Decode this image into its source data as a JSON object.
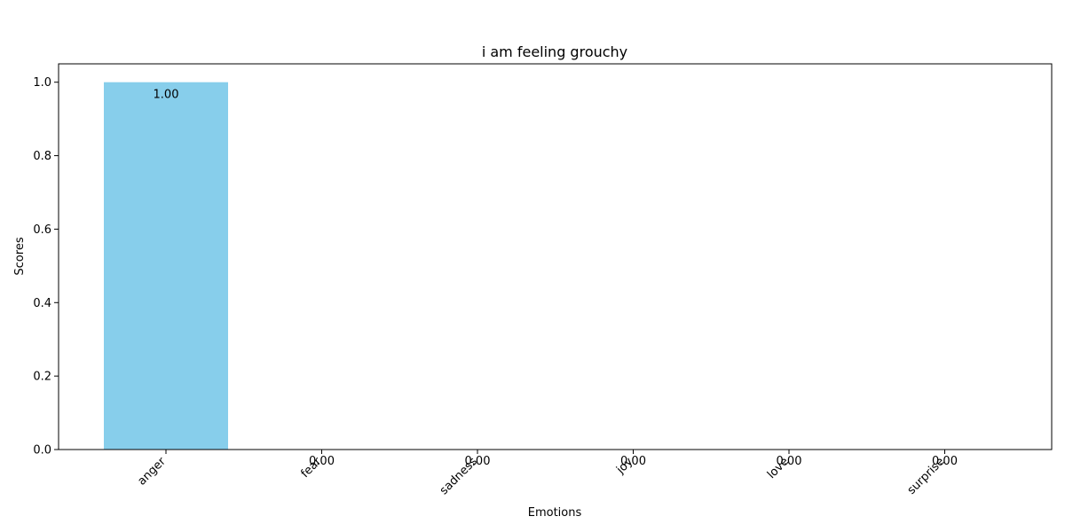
{
  "chart_data": {
    "type": "bar",
    "title": "i am feeling grouchy",
    "xlabel": "Emotions",
    "ylabel": "Scores",
    "categories": [
      "anger",
      "fear",
      "sadness",
      "joy",
      "love",
      "surprise"
    ],
    "values": [
      1.0,
      0.0,
      0.0,
      0.0,
      0.0,
      0.0
    ],
    "data_labels": [
      "1.00",
      "0.00",
      "0.00",
      "0.00",
      "0.00",
      "0.00"
    ],
    "ylim": [
      0,
      1.05
    ],
    "yticks": [
      0.0,
      0.2,
      0.4,
      0.6,
      0.8,
      1.0
    ],
    "ytick_labels": [
      "0.0",
      "0.2",
      "0.4",
      "0.6",
      "0.8",
      "1.0"
    ],
    "bar_color": "#87ceeb",
    "grid": false,
    "legend": "none"
  }
}
